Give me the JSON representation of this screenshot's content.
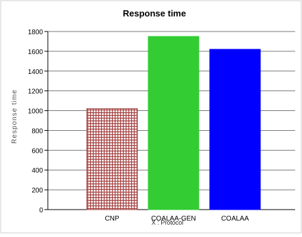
{
  "chart_data": {
    "type": "bar",
    "title": "Response time",
    "xlabel": "X : Protocol",
    "ylabel": "Response time",
    "categories": [
      "CNP",
      "COALAA-GEN",
      "COALAA"
    ],
    "values": [
      1020,
      1750,
      1620
    ],
    "colors": [
      "#a05050",
      "#33cc33",
      "#0000ff"
    ],
    "patterns": [
      "crosshatch",
      "solid",
      "solid"
    ],
    "ylim": [
      0,
      1800
    ],
    "yticks": [
      0,
      200,
      400,
      600,
      800,
      1000,
      1200,
      1400,
      1600,
      1800
    ],
    "grid": true,
    "legend": "none"
  }
}
